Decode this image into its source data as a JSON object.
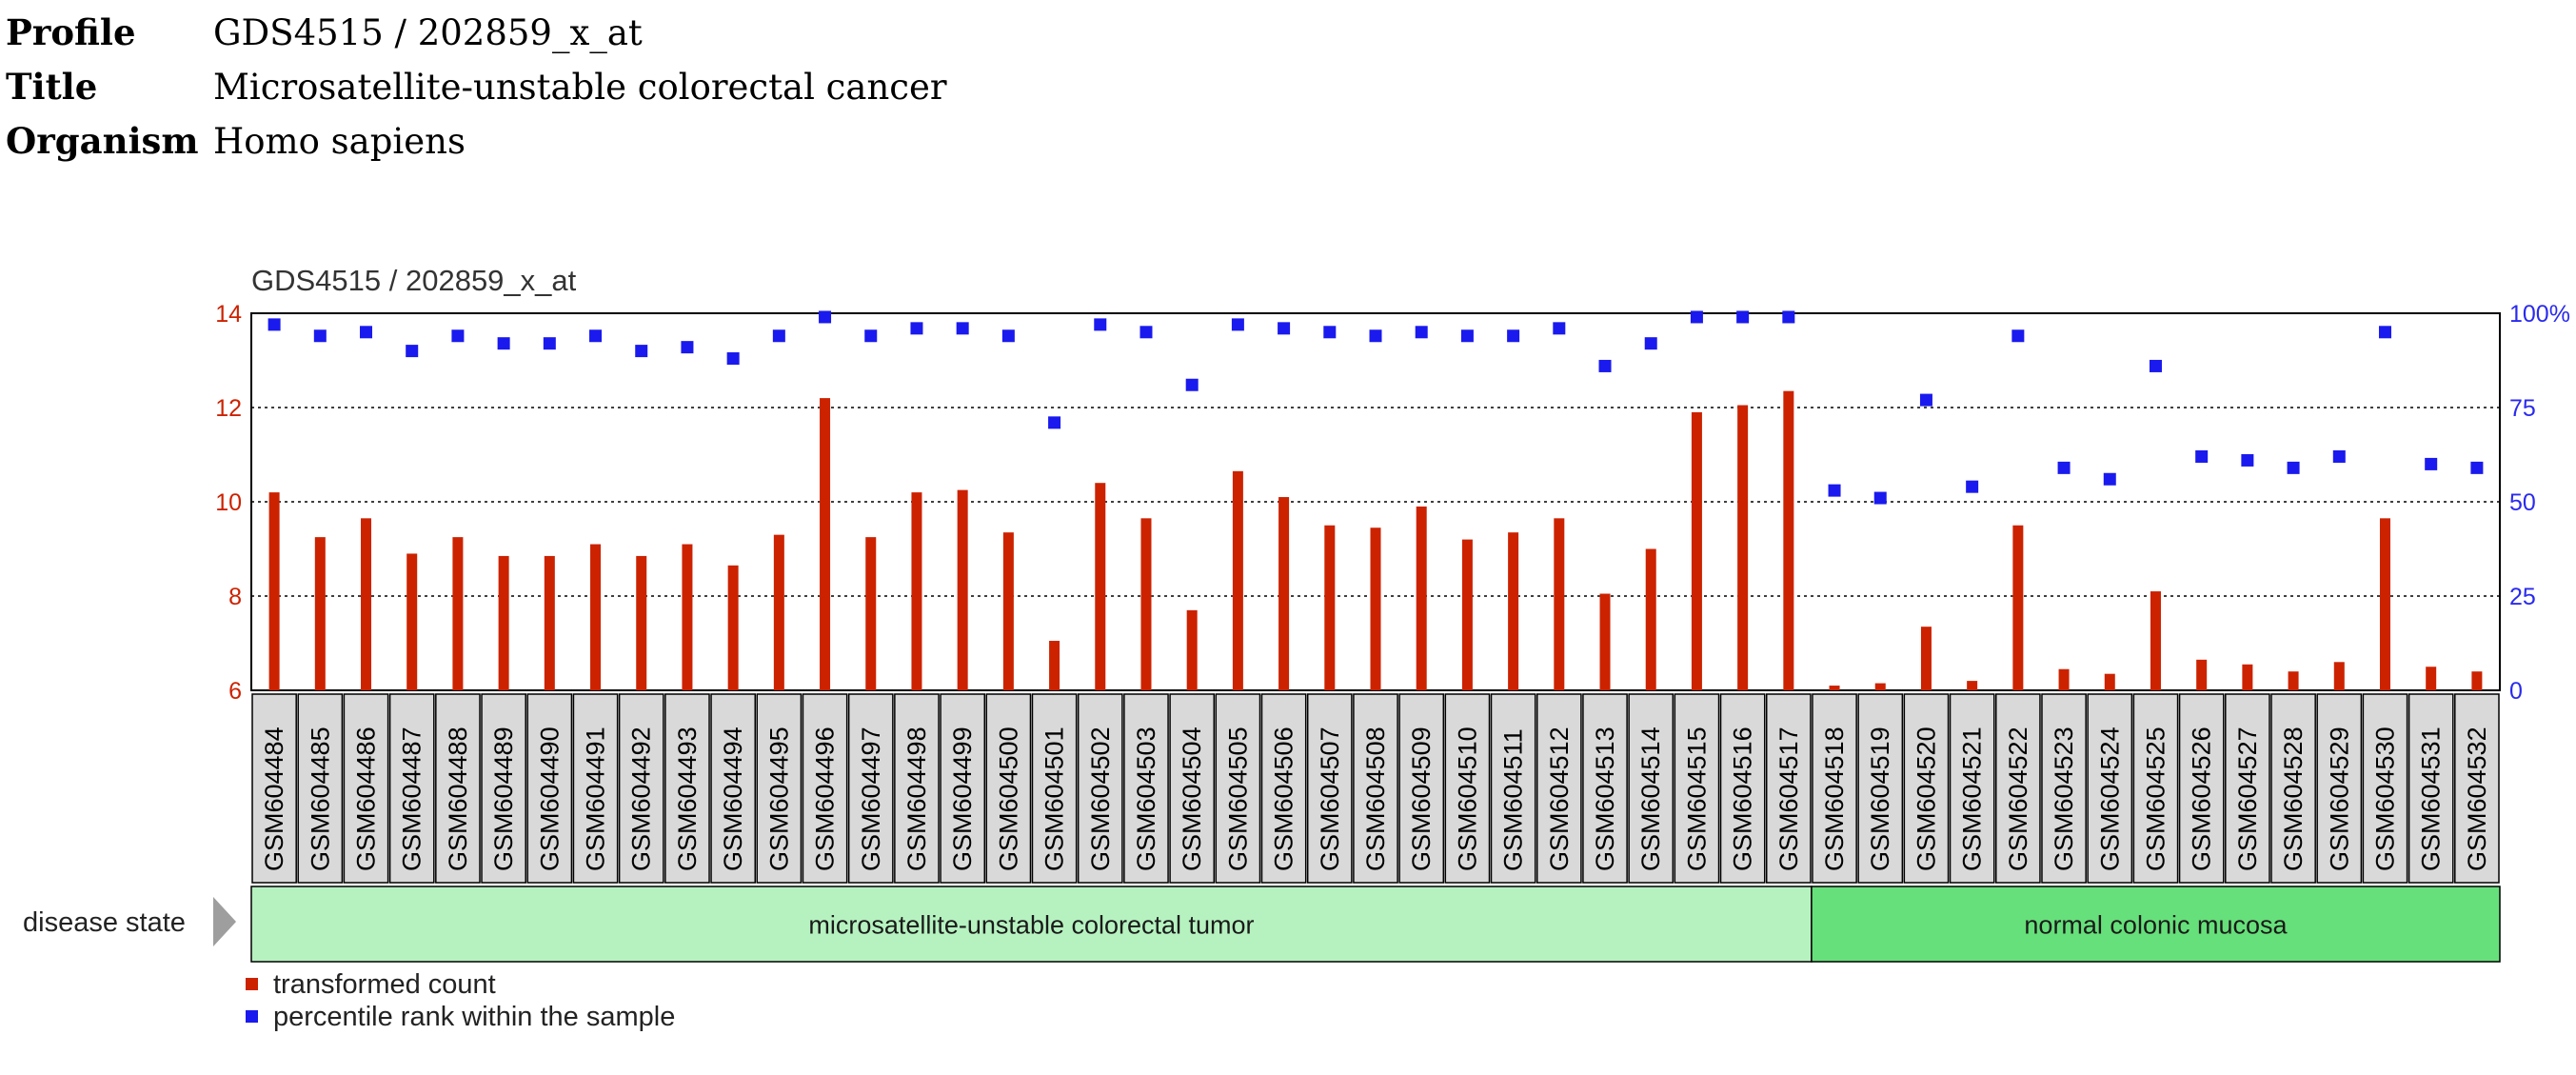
{
  "header": {
    "profile_label": "Profile",
    "profile_value": "GDS4515 / 202859_x_at",
    "title_label": "Title",
    "title_value": "Microsatellite-unstable colorectal cancer",
    "organism_label": "Organism",
    "organism_value": "Homo sapiens"
  },
  "colors": {
    "bar": "#cc2200",
    "rank_point": "#1a1aee",
    "left_axis": "#cc2200",
    "right_axis": "#2a2aee",
    "sample_box": "#d9d9d9",
    "group_tumor": "#b6f2c0",
    "group_normal": "#66e07a",
    "arrow": "#9e9e9e"
  },
  "chart_data": {
    "type": "bar",
    "title": "GDS4515 / 202859_x_at",
    "left_axis": {
      "ylim": [
        6,
        14
      ],
      "ticks": [
        "6",
        "8",
        "10",
        "12",
        "14"
      ]
    },
    "right_axis": {
      "ylim": [
        0,
        100
      ],
      "ticks": [
        "0",
        "25",
        "50",
        "75",
        "100%"
      ]
    },
    "gridlines_at": [
      8,
      10,
      12
    ],
    "categories": [
      "GSM604484",
      "GSM604485",
      "GSM604486",
      "GSM604487",
      "GSM604488",
      "GSM604489",
      "GSM604490",
      "GSM604491",
      "GSM604492",
      "GSM604493",
      "GSM604494",
      "GSM604495",
      "GSM604496",
      "GSM604497",
      "GSM604498",
      "GSM604499",
      "GSM604500",
      "GSM604501",
      "GSM604502",
      "GSM604503",
      "GSM604504",
      "GSM604505",
      "GSM604506",
      "GSM604507",
      "GSM604508",
      "GSM604509",
      "GSM604510",
      "GSM604511",
      "GSM604512",
      "GSM604513",
      "GSM604514",
      "GSM604515",
      "GSM604516",
      "GSM604517",
      "GSM604518",
      "GSM604519",
      "GSM604520",
      "GSM604521",
      "GSM604522",
      "GSM604523",
      "GSM604524",
      "GSM604525",
      "GSM604526",
      "GSM604527",
      "GSM604528",
      "GSM604529",
      "GSM604530",
      "GSM604531",
      "GSM604532"
    ],
    "series": [
      {
        "name": "transformed count",
        "axis": "left",
        "values": [
          10.2,
          9.25,
          9.65,
          8.9,
          9.25,
          8.85,
          8.85,
          9.1,
          8.85,
          9.1,
          8.65,
          9.3,
          12.2,
          9.25,
          10.2,
          10.25,
          9.35,
          7.05,
          10.4,
          9.65,
          7.7,
          10.65,
          10.1,
          9.5,
          9.45,
          9.9,
          9.2,
          9.35,
          9.65,
          8.05,
          9.0,
          11.9,
          12.05,
          12.35,
          6.1,
          6.15,
          7.35,
          6.2,
          9.5,
          6.45,
          6.35,
          8.1,
          6.65,
          6.55,
          6.4,
          6.6,
          9.65,
          6.5,
          6.4
        ]
      },
      {
        "name": "percentile rank within the sample",
        "axis": "right",
        "values": [
          97,
          94,
          95,
          90,
          94,
          92,
          92,
          94,
          90,
          91,
          88,
          94,
          99,
          94,
          96,
          96,
          94,
          71,
          97,
          95,
          81,
          97,
          96,
          95,
          94,
          95,
          94,
          94,
          96,
          86,
          92,
          99,
          99,
          99,
          53,
          51,
          77,
          54,
          94,
          59,
          56,
          86,
          62,
          61,
          59,
          62,
          95,
          60,
          59
        ]
      }
    ],
    "factor": {
      "label": "disease state",
      "groups": [
        {
          "name": "microsatellite-unstable colorectal tumor",
          "count": 34
        },
        {
          "name": "normal colonic mucosa",
          "count": 15
        }
      ]
    },
    "legend": [
      "transformed count",
      "percentile rank within the sample"
    ]
  }
}
